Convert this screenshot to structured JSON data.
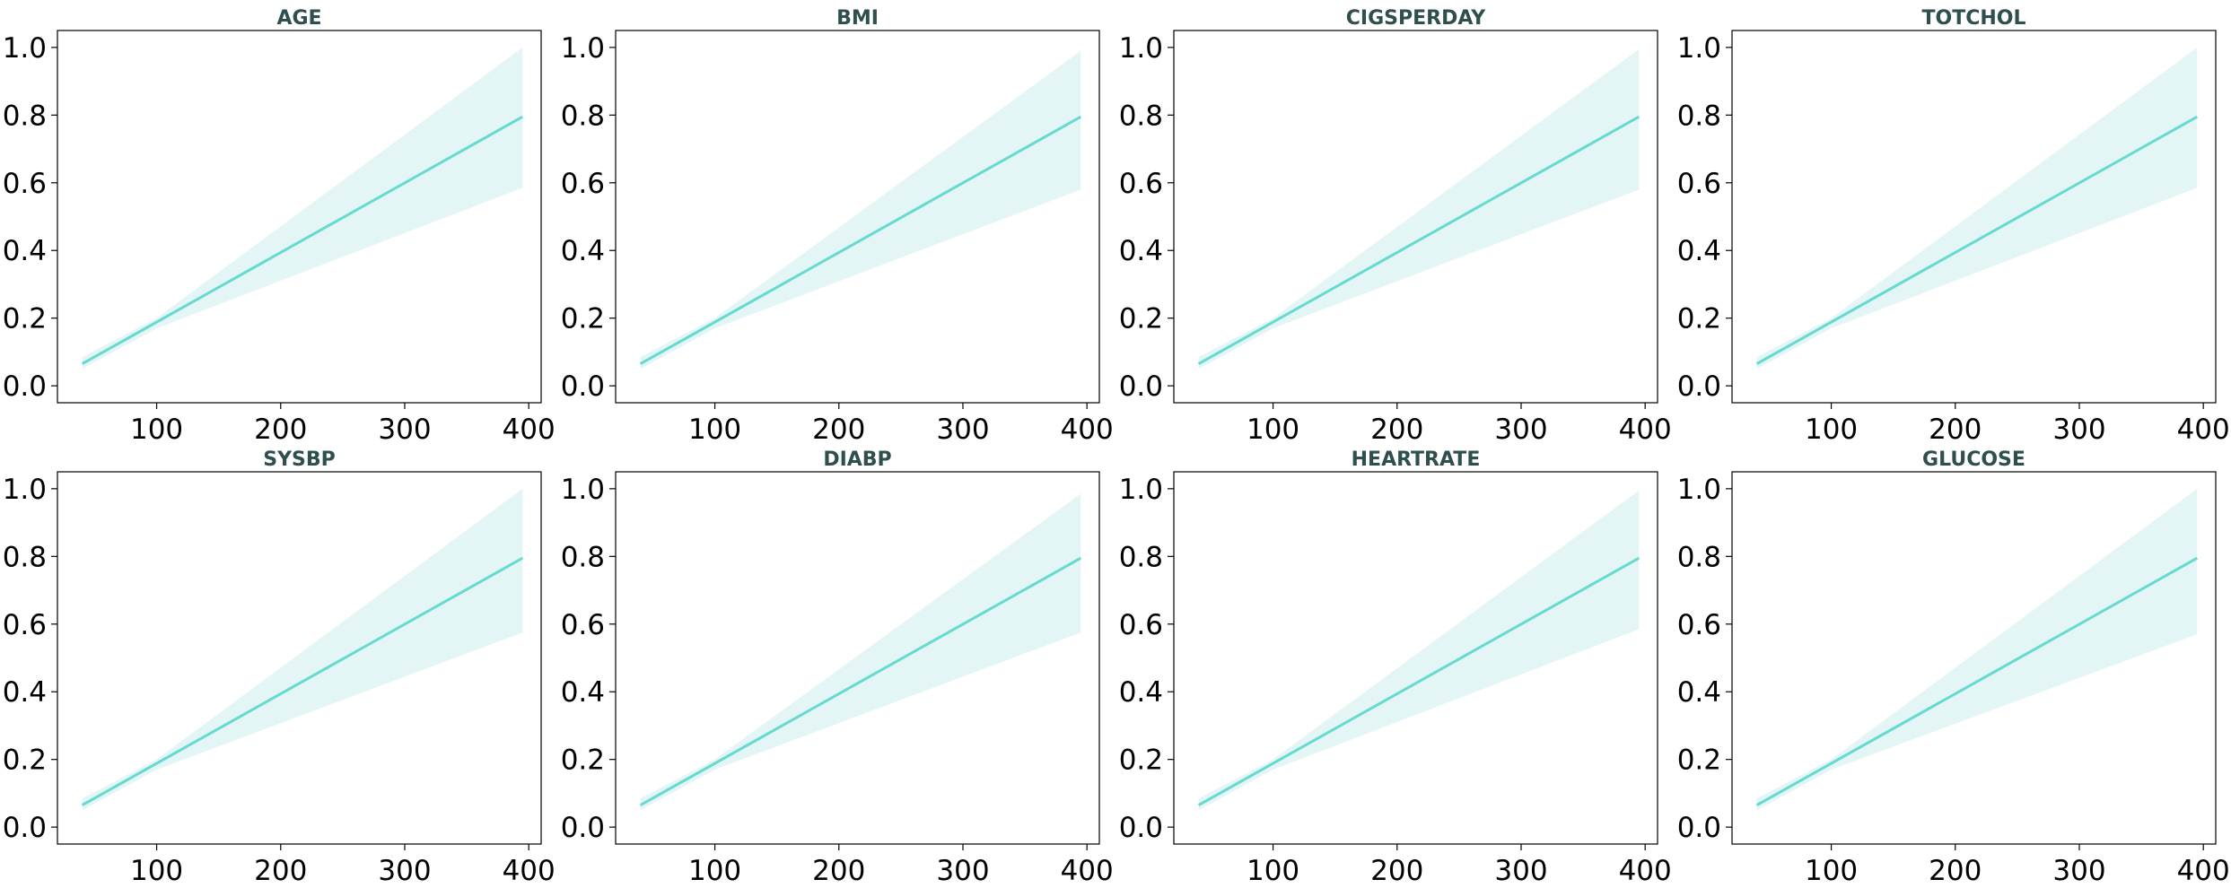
{
  "colors": {
    "line": "#66d9d1",
    "band": "#e3f6f5",
    "title": "#2f4f4f",
    "axis": "#000000"
  },
  "chart_data": [
    {
      "type": "line",
      "title": "AGE",
      "xlim": [
        20,
        410
      ],
      "ylim": [
        -0.05,
        1.05
      ],
      "x_ticks": [
        100,
        200,
        300,
        400
      ],
      "y_ticks": [
        0.0,
        0.2,
        0.4,
        0.6,
        0.8,
        1.0
      ],
      "series": [
        {
          "x": [
            40,
            395
          ],
          "y": [
            0.065,
            0.795
          ]
        }
      ],
      "band": {
        "x": [
          40,
          100,
          395
        ],
        "upper": [
          0.085,
          0.2,
          1.0
        ],
        "lower": [
          0.05,
          0.17,
          0.585
        ]
      }
    },
    {
      "type": "line",
      "title": "BMI",
      "xlim": [
        20,
        410
      ],
      "ylim": [
        -0.05,
        1.05
      ],
      "x_ticks": [
        100,
        200,
        300,
        400
      ],
      "y_ticks": [
        0.0,
        0.2,
        0.4,
        0.6,
        0.8,
        1.0
      ],
      "series": [
        {
          "x": [
            40,
            395
          ],
          "y": [
            0.065,
            0.795
          ]
        }
      ],
      "band": {
        "x": [
          40,
          100,
          395
        ],
        "upper": [
          0.085,
          0.2,
          0.99
        ],
        "lower": [
          0.05,
          0.17,
          0.58
        ]
      }
    },
    {
      "type": "line",
      "title": "CIGSPERDAY",
      "xlim": [
        20,
        410
      ],
      "ylim": [
        -0.05,
        1.05
      ],
      "x_ticks": [
        100,
        200,
        300,
        400
      ],
      "y_ticks": [
        0.0,
        0.2,
        0.4,
        0.6,
        0.8,
        1.0
      ],
      "series": [
        {
          "x": [
            40,
            395
          ],
          "y": [
            0.065,
            0.795
          ]
        }
      ],
      "band": {
        "x": [
          40,
          100,
          395
        ],
        "upper": [
          0.085,
          0.2,
          0.995
        ],
        "lower": [
          0.05,
          0.17,
          0.58
        ]
      }
    },
    {
      "type": "line",
      "title": "TOTCHOL",
      "xlim": [
        20,
        410
      ],
      "ylim": [
        -0.05,
        1.05
      ],
      "x_ticks": [
        100,
        200,
        300,
        400
      ],
      "y_ticks": [
        0.0,
        0.2,
        0.4,
        0.6,
        0.8,
        1.0
      ],
      "series": [
        {
          "x": [
            40,
            395
          ],
          "y": [
            0.065,
            0.795
          ]
        }
      ],
      "band": {
        "x": [
          40,
          100,
          395
        ],
        "upper": [
          0.085,
          0.2,
          1.0
        ],
        "lower": [
          0.05,
          0.17,
          0.585
        ]
      }
    },
    {
      "type": "line",
      "title": "SYSBP",
      "xlim": [
        20,
        410
      ],
      "ylim": [
        -0.05,
        1.05
      ],
      "x_ticks": [
        100,
        200,
        300,
        400
      ],
      "y_ticks": [
        0.0,
        0.2,
        0.4,
        0.6,
        0.8,
        1.0
      ],
      "series": [
        {
          "x": [
            40,
            395
          ],
          "y": [
            0.065,
            0.795
          ]
        }
      ],
      "band": {
        "x": [
          40,
          100,
          395
        ],
        "upper": [
          0.085,
          0.2,
          1.0
        ],
        "lower": [
          0.05,
          0.17,
          0.575
        ]
      }
    },
    {
      "type": "line",
      "title": "DIABP",
      "xlim": [
        20,
        410
      ],
      "ylim": [
        -0.05,
        1.05
      ],
      "x_ticks": [
        100,
        200,
        300,
        400
      ],
      "y_ticks": [
        0.0,
        0.2,
        0.4,
        0.6,
        0.8,
        1.0
      ],
      "series": [
        {
          "x": [
            40,
            395
          ],
          "y": [
            0.065,
            0.795
          ]
        }
      ],
      "band": {
        "x": [
          40,
          100,
          395
        ],
        "upper": [
          0.085,
          0.2,
          0.985
        ],
        "lower": [
          0.05,
          0.17,
          0.575
        ]
      }
    },
    {
      "type": "line",
      "title": "HEARTRATE",
      "xlim": [
        20,
        410
      ],
      "ylim": [
        -0.05,
        1.05
      ],
      "x_ticks": [
        100,
        200,
        300,
        400
      ],
      "y_ticks": [
        0.0,
        0.2,
        0.4,
        0.6,
        0.8,
        1.0
      ],
      "series": [
        {
          "x": [
            40,
            395
          ],
          "y": [
            0.065,
            0.795
          ]
        }
      ],
      "band": {
        "x": [
          40,
          100,
          395
        ],
        "upper": [
          0.085,
          0.2,
          0.995
        ],
        "lower": [
          0.05,
          0.17,
          0.585
        ]
      }
    },
    {
      "type": "line",
      "title": "GLUCOSE",
      "xlim": [
        20,
        410
      ],
      "ylim": [
        -0.05,
        1.05
      ],
      "x_ticks": [
        100,
        200,
        300,
        400
      ],
      "y_ticks": [
        0.0,
        0.2,
        0.4,
        0.6,
        0.8,
        1.0
      ],
      "series": [
        {
          "x": [
            40,
            395
          ],
          "y": [
            0.065,
            0.795
          ]
        }
      ],
      "band": {
        "x": [
          40,
          100,
          395
        ],
        "upper": [
          0.085,
          0.2,
          1.0
        ],
        "lower": [
          0.05,
          0.17,
          0.57
        ]
      }
    }
  ]
}
